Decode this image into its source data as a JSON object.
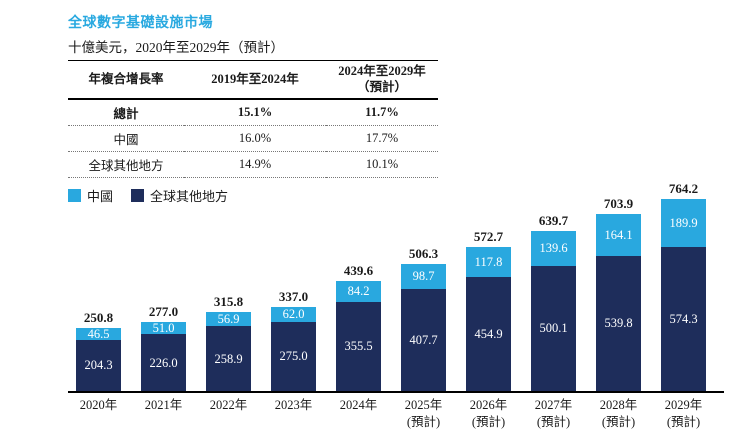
{
  "title": "全球數字基礎設施市場",
  "subtitle": "十億美元，2020年至2029年（預計）",
  "colors": {
    "title_accent": "#29a9e0",
    "china_blue": "#29a8df",
    "rest_navy": "#1e2d5b",
    "axis_black": "#000000"
  },
  "cagr_table": {
    "col1_header": "年複合增長率",
    "col2_header": "2019年至2024年",
    "col3_header_line1": "2024年至2029年",
    "col3_header_line2": "（預計）",
    "rows": [
      {
        "label": "總計",
        "v1": "15.1%",
        "v2": "11.7%"
      },
      {
        "label": "中國",
        "v1": "16.0%",
        "v2": "17.7%"
      },
      {
        "label": "全球其他地方",
        "v1": "14.9%",
        "v2": "10.1%"
      }
    ]
  },
  "legend": [
    {
      "label": "中國",
      "color": "#29a8df"
    },
    {
      "label": "全球其他地方",
      "color": "#1e2d5b"
    }
  ],
  "chart_data": {
    "type": "bar",
    "stacked": true,
    "title": "全球數字基礎設施市場",
    "unit": "十億美元",
    "ylim": [
      0,
      800
    ],
    "grid": false,
    "legend_position": "top-left",
    "categories": [
      {
        "line1": "2020年",
        "line2": ""
      },
      {
        "line1": "2021年",
        "line2": ""
      },
      {
        "line1": "2022年",
        "line2": ""
      },
      {
        "line1": "2023年",
        "line2": ""
      },
      {
        "line1": "2024年",
        "line2": ""
      },
      {
        "line1": "2025年",
        "line2": "(預計)"
      },
      {
        "line1": "2026年",
        "line2": "(預計)"
      },
      {
        "line1": "2027年",
        "line2": "(預計)"
      },
      {
        "line1": "2028年",
        "line2": "(預計)"
      },
      {
        "line1": "2029年",
        "line2": "(預計)"
      }
    ],
    "series": [
      {
        "name": "中國",
        "color": "#29a8df",
        "values": [
          46.5,
          51.0,
          56.9,
          62.0,
          84.2,
          98.7,
          117.8,
          139.6,
          164.1,
          189.9
        ],
        "value_labels": [
          "46.5",
          "51.0",
          "56.9",
          "62.0",
          "84.2",
          "98.7",
          "117.8",
          "139.6",
          "164.1",
          "189.9"
        ]
      },
      {
        "name": "全球其他地方",
        "color": "#1e2d5b",
        "values": [
          204.3,
          226.0,
          258.9,
          275.0,
          355.5,
          407.7,
          454.9,
          500.1,
          539.8,
          574.3
        ],
        "value_labels": [
          "204.3",
          "226.0",
          "258.9",
          "275.0",
          "355.5",
          "407.7",
          "454.9",
          "500.1",
          "539.8",
          "574.3"
        ]
      }
    ],
    "totals": [
      250.8,
      277.0,
      315.8,
      337.0,
      439.6,
      506.3,
      572.7,
      639.7,
      703.9,
      764.2
    ],
    "total_labels": [
      "250.8",
      "277.0",
      "315.8",
      "337.0",
      "439.6",
      "506.3",
      "572.7",
      "639.7",
      "703.9",
      "764.2"
    ]
  }
}
